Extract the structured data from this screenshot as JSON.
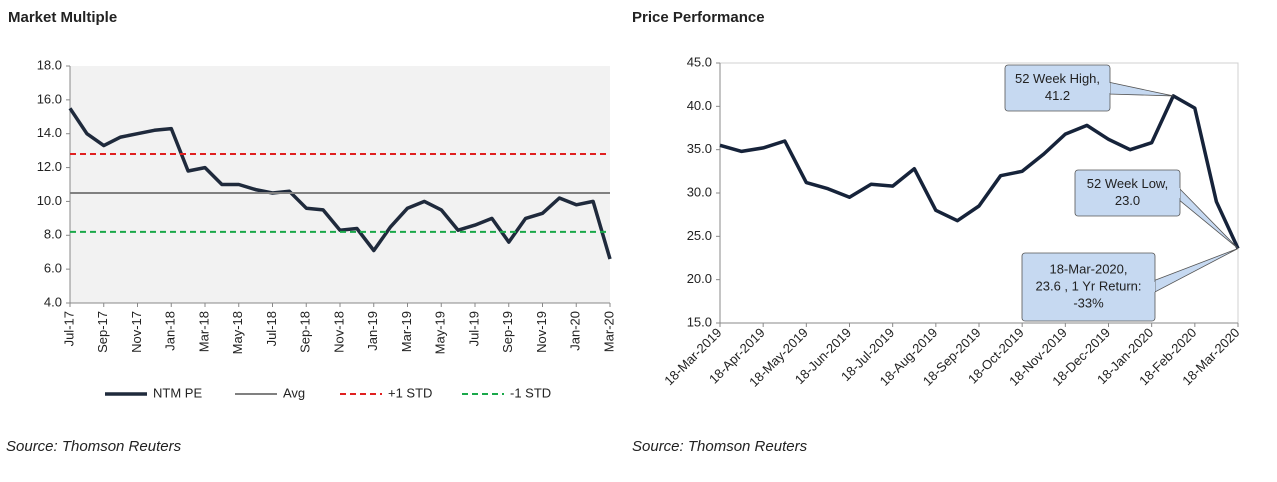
{
  "chart_data": [
    {
      "type": "line",
      "title": "Market Multiple",
      "source": "Source: Thomson Reuters",
      "categories": [
        "Jul-17",
        null,
        "Sep-17",
        null,
        "Nov-17",
        null,
        "Jan-18",
        null,
        "Mar-18",
        null,
        "May-18",
        null,
        "Jul-18",
        null,
        "Sep-18",
        null,
        "Nov-18",
        null,
        "Jan-19",
        null,
        "Mar-19",
        null,
        "May-19",
        null,
        "Jul-19",
        null,
        "Sep-19",
        null,
        "Nov-19",
        null,
        "Jan-20",
        null,
        "Mar-20"
      ],
      "series": [
        {
          "name": "NTM PE",
          "color": "#1f2a3c",
          "style": "solid",
          "values": [
            15.5,
            14.0,
            13.3,
            13.8,
            14.0,
            14.2,
            14.3,
            11.8,
            12.0,
            11.0,
            11.0,
            10.7,
            10.5,
            10.6,
            9.6,
            9.5,
            8.3,
            8.4,
            7.1,
            8.5,
            9.6,
            10.0,
            9.5,
            8.3,
            8.6,
            9.0,
            7.6,
            9.0,
            9.3,
            10.2,
            9.8,
            10.0,
            6.6
          ]
        },
        {
          "name": "Avg",
          "color": "#808080",
          "style": "solid",
          "values": [
            10.5,
            10.5,
            10.5,
            10.5,
            10.5,
            10.5,
            10.5,
            10.5,
            10.5,
            10.5,
            10.5,
            10.5,
            10.5,
            10.5,
            10.5,
            10.5,
            10.5,
            10.5,
            10.5,
            10.5,
            10.5,
            10.5,
            10.5,
            10.5,
            10.5,
            10.5,
            10.5,
            10.5,
            10.5,
            10.5,
            10.5,
            10.5,
            10.5
          ]
        },
        {
          "name": "+1 STD",
          "color": "#e02020",
          "style": "dashed",
          "values": [
            12.8,
            12.8,
            12.8,
            12.8,
            12.8,
            12.8,
            12.8,
            12.8,
            12.8,
            12.8,
            12.8,
            12.8,
            12.8,
            12.8,
            12.8,
            12.8,
            12.8,
            12.8,
            12.8,
            12.8,
            12.8,
            12.8,
            12.8,
            12.8,
            12.8,
            12.8,
            12.8,
            12.8,
            12.8,
            12.8,
            12.8,
            12.8,
            12.8
          ]
        },
        {
          "name": "-1 STD",
          "color": "#1aa84a",
          "style": "dashed",
          "values": [
            8.2,
            8.2,
            8.2,
            8.2,
            8.2,
            8.2,
            8.2,
            8.2,
            8.2,
            8.2,
            8.2,
            8.2,
            8.2,
            8.2,
            8.2,
            8.2,
            8.2,
            8.2,
            8.2,
            8.2,
            8.2,
            8.2,
            8.2,
            8.2,
            8.2,
            8.2,
            8.2,
            8.2,
            8.2,
            8.2,
            8.2,
            8.2,
            8.2
          ]
        }
      ],
      "ylim": [
        4,
        18
      ],
      "yticks": [
        {
          "value": 4,
          "label": "4.0"
        },
        {
          "value": 6,
          "label": "6.0"
        },
        {
          "value": 8,
          "label": "8.0"
        },
        {
          "value": 10,
          "label": "10.0"
        },
        {
          "value": 12,
          "label": "12.0"
        },
        {
          "value": 14,
          "label": "14.0"
        },
        {
          "value": 16,
          "label": "16.0"
        },
        {
          "value": 18,
          "label": "18.0"
        }
      ],
      "legend": "bottom",
      "grid": false
    },
    {
      "type": "line",
      "title": "Price Performance",
      "source": "Source: Thomson Reuters",
      "categories": [
        "18-Mar-2019",
        null,
        "18-Apr-2019",
        null,
        "18-May-2019",
        null,
        "18-Jun-2019",
        null,
        "18-Jul-2019",
        null,
        "18-Aug-2019",
        null,
        "18-Sep-2019",
        null,
        "18-Oct-2019",
        null,
        "18-Nov-2019",
        null,
        "18-Dec-2019",
        null,
        "18-Jan-2020",
        null,
        "18-Feb-2020",
        null,
        "18-Mar-2020"
      ],
      "series": [
        {
          "name": "Price",
          "color": "#16233a",
          "style": "solid",
          "values": [
            35.5,
            34.8,
            35.2,
            36.0,
            31.2,
            30.5,
            29.5,
            31.0,
            30.8,
            32.8,
            28.0,
            26.8,
            28.5,
            32.0,
            32.5,
            34.5,
            36.8,
            37.8,
            36.2,
            35.0,
            35.8,
            41.2,
            39.8,
            29.0,
            23.6
          ]
        }
      ],
      "ylim": [
        15,
        45
      ],
      "yticks": [
        {
          "value": 15,
          "label": "15.0"
        },
        {
          "value": 20,
          "label": "20.0"
        },
        {
          "value": 25,
          "label": "25.0"
        },
        {
          "value": 30,
          "label": "30.0"
        },
        {
          "value": 35,
          "label": "35.0"
        },
        {
          "value": 40,
          "label": "40.0"
        },
        {
          "value": 45,
          "label": "45.0"
        }
      ],
      "legend": "none",
      "grid": false,
      "annotations": [
        {
          "lines": [
            "52 Week High,",
            "41.2"
          ]
        },
        {
          "lines": [
            "52 Week Low,",
            "23.0"
          ]
        },
        {
          "lines": [
            "18-Mar-2020,",
            "23.6 , 1 Yr Return:",
            "-33%"
          ]
        }
      ]
    }
  ]
}
